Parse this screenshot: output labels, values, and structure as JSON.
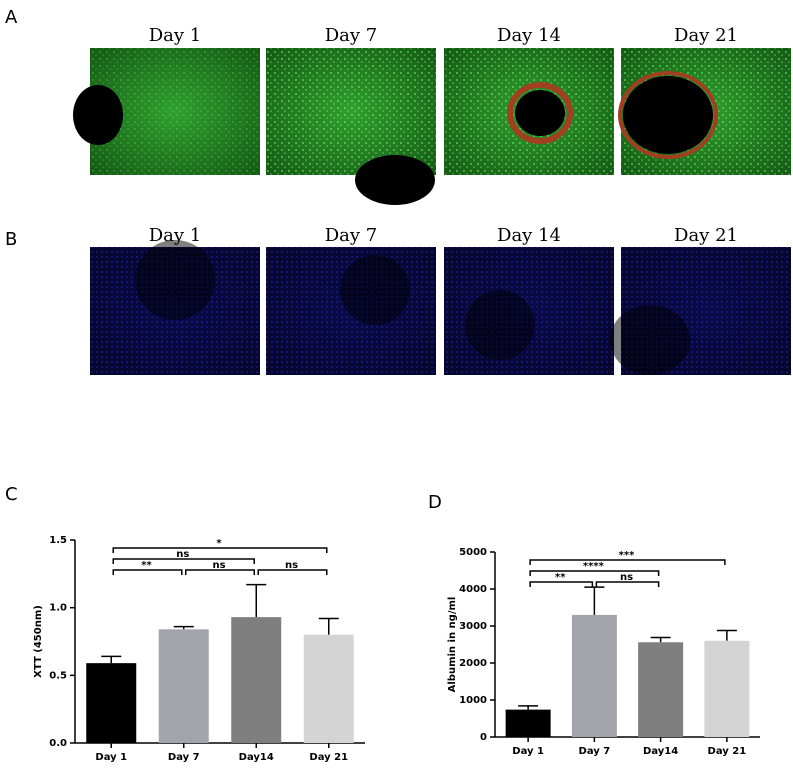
{
  "panels": [
    {
      "label": "A",
      "titles": [
        "Day 1",
        "Day 7",
        "Day 14",
        "Day 21"
      ]
    },
    {
      "label": "B",
      "titles": [
        "Day 1",
        "Day 7",
        "Day 14",
        "Day 21"
      ]
    }
  ],
  "chart_data": [
    {
      "type": "bar",
      "panel": "C",
      "ylabel": "XTT (450nm)",
      "categories": [
        "Day 1",
        "Day 7",
        "Day14",
        "Day 21"
      ],
      "values": [
        0.59,
        0.84,
        0.93,
        0.8
      ],
      "errors": [
        0.05,
        0.02,
        0.24,
        0.12
      ],
      "colors": [
        "#000000",
        "#a3a3ab",
        "#7f7f7f",
        "#d4d4d4"
      ],
      "ylim": [
        0,
        1.5
      ],
      "yticks": [
        {
          "value": 0,
          "label": "0.0"
        },
        0.5,
        {
          "value": 1,
          "label": "1.0"
        },
        1.5
      ],
      "brackets": [
        {
          "from": 0,
          "to": 1,
          "label": "**"
        },
        {
          "from": 1,
          "to": 2,
          "label": "ns"
        },
        {
          "from": 2,
          "to": 3,
          "label": "ns"
        },
        {
          "from": 0,
          "to": 2,
          "label": "ns"
        },
        {
          "from": 0,
          "to": 3,
          "label": "*"
        }
      ]
    },
    {
      "type": "bar",
      "panel": "D",
      "ylabel": "Albumin in ng/ml",
      "categories": [
        "Day 1",
        "Day 7",
        "Day14",
        "Day 21"
      ],
      "values": [
        740,
        3300,
        2560,
        2600
      ],
      "errors": [
        100,
        750,
        130,
        280
      ],
      "colors": [
        "#000000",
        "#a3a3ab",
        "#7f7f7f",
        "#d4d4d4"
      ],
      "ylim": [
        0,
        5000
      ],
      "yticks": [
        0,
        1000,
        2000,
        3000,
        4000,
        5000
      ],
      "brackets": [
        {
          "from": 0,
          "to": 1,
          "label": "**"
        },
        {
          "from": 1,
          "to": 2,
          "label": "ns"
        },
        {
          "from": 0,
          "to": 2,
          "label": "****"
        },
        {
          "from": 0,
          "to": 3,
          "label": "***"
        }
      ]
    }
  ]
}
